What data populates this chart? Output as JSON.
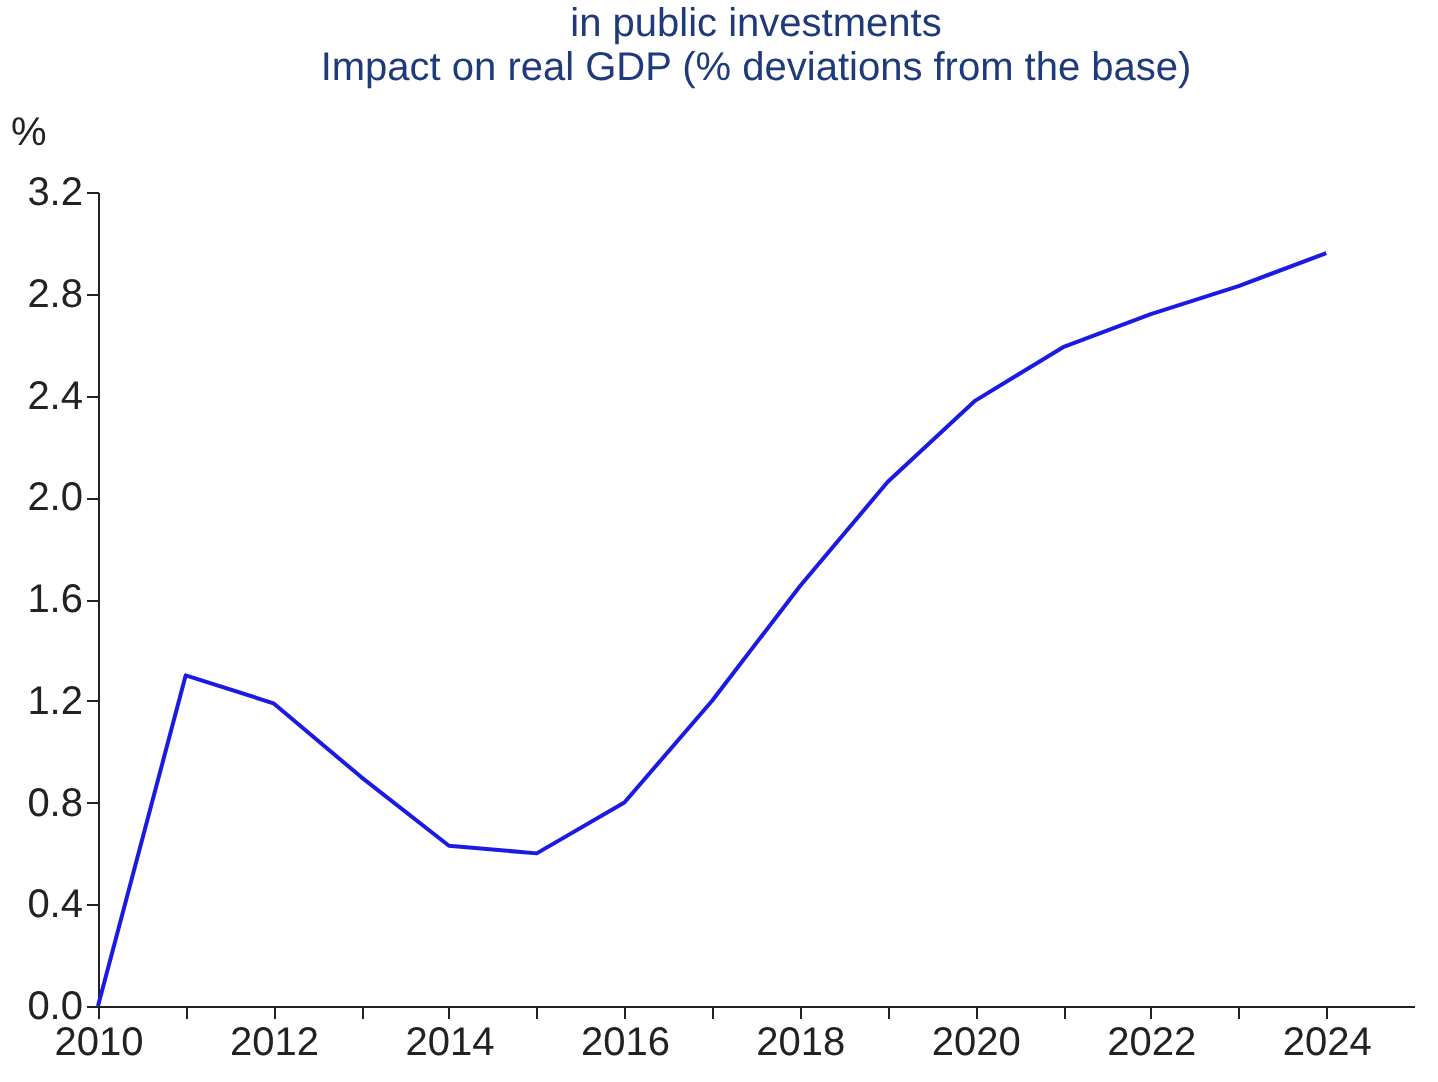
{
  "chart_data": {
    "type": "line",
    "title": [
      "in public investments",
      "Impact on real GDP (% deviations from the base)"
    ],
    "ylabel": "%",
    "x": [
      2010,
      2011,
      2012,
      2013,
      2014,
      2015,
      2016,
      2017,
      2018,
      2019,
      2020,
      2021,
      2022,
      2023,
      2024
    ],
    "series": [
      {
        "color": "#1a1ae0",
        "values": [
          0,
          1.3,
          1.19,
          0.9,
          0.63,
          0.6,
          0.8,
          1.2,
          1.65,
          2.06,
          2.38,
          2.59,
          2.72,
          2.83,
          2.96
        ]
      }
    ],
    "xlim": [
      2010,
      2025
    ],
    "xticks": [
      2010,
      {
        "value": 2011,
        "label": null
      },
      2012,
      {
        "value": 2013,
        "label": null
      },
      2014,
      {
        "value": 2015,
        "label": null
      },
      2016,
      {
        "value": 2017,
        "label": null
      },
      2018,
      {
        "value": 2019,
        "label": null
      },
      2020,
      {
        "value": 2021,
        "label": null
      },
      2022,
      {
        "value": 2023,
        "label": null
      },
      2024
    ],
    "ylim": [
      0,
      3.2
    ],
    "yticks": [
      {
        "value": 0,
        "label": "0.0"
      },
      0.4,
      0.8,
      1.2,
      1.6,
      {
        "value": 2,
        "label": "2.0"
      },
      2.4,
      2.8,
      3.2
    ],
    "grid": false,
    "legend": false,
    "marker": "none",
    "line_style": "solid"
  }
}
